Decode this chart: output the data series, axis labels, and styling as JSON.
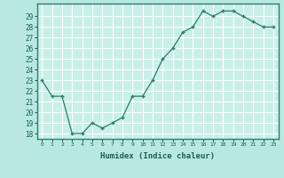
{
  "x": [
    0,
    1,
    2,
    3,
    4,
    5,
    6,
    7,
    8,
    9,
    10,
    11,
    12,
    13,
    14,
    15,
    16,
    17,
    18,
    19,
    20,
    21,
    22,
    23
  ],
  "y": [
    23,
    21.5,
    21.5,
    18,
    18,
    19,
    18.5,
    19,
    19.5,
    21.5,
    21.5,
    23,
    25,
    26,
    27.5,
    28,
    29.5,
    29,
    29.5,
    29.5,
    29,
    28.5,
    28,
    28
  ],
  "xlabel": "Humidex (Indice chaleur)",
  "ylim": [
    17.5,
    30.2
  ],
  "xlim": [
    -0.5,
    23.5
  ],
  "yticks": [
    18,
    19,
    20,
    21,
    22,
    23,
    24,
    25,
    26,
    27,
    28,
    29
  ],
  "xtick_labels": [
    "0",
    "1",
    "2",
    "3",
    "4",
    "5",
    "6",
    "7",
    "8",
    "9",
    "10",
    "11",
    "12",
    "13",
    "14",
    "15",
    "16",
    "17",
    "18",
    "19",
    "20",
    "21",
    "22",
    "23"
  ],
  "line_color": "#2d7d6e",
  "marker": "+",
  "bg_color": "#b8e8e0",
  "plot_bg_color": "#c8f0e8",
  "grid_color": "#ffffff",
  "text_color": "#1a5f52",
  "border_color": "#2d7d6e"
}
